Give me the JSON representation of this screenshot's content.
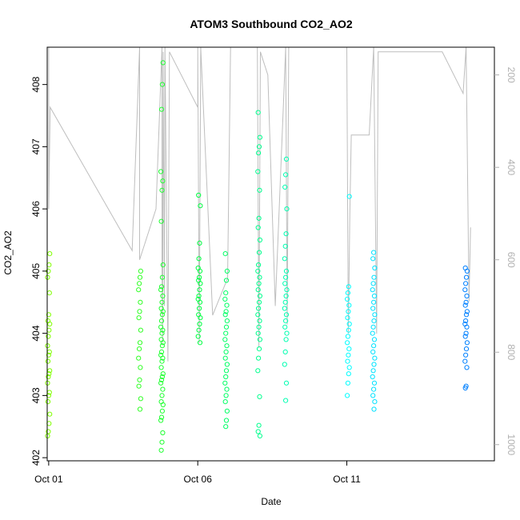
{
  "chart_data": {
    "type": "scatter",
    "title": "ATOM3 Southbound CO2_AO2",
    "xlabel": "Date",
    "ylabel": "CO2_AO2",
    "x_tick_labels": [
      "Oct 01",
      "Oct 06",
      "Oct 11"
    ],
    "x_tick_days": [
      1,
      6,
      11
    ],
    "xlim": [
      0.95,
      15.95
    ],
    "ylim": [
      401.95,
      408.6
    ],
    "y_ticks": [
      402,
      403,
      404,
      405,
      406,
      407,
      408
    ],
    "y2_ticks": [
      200,
      400,
      600,
      800,
      1000
    ],
    "y2_reversed": true,
    "y2lim": [
      1035,
      140
    ],
    "grid": false,
    "colors": {
      "ramp_start": "#80ff00",
      "ramp_mid": "#00ff40",
      "ramp_cyan": "#00ffff",
      "ramp_end": "#0080ff",
      "secondary_line": "#bebebe",
      "right_axis": "#b0b0b0"
    },
    "series": [
      {
        "x_day": 1.0,
        "values": [
          402.35,
          402.42,
          402.55,
          402.7,
          402.9,
          403.0,
          403.05,
          403.2,
          403.3,
          403.35,
          403.4,
          403.55,
          403.65,
          403.7,
          403.8,
          403.95,
          404.05,
          404.15,
          404.2,
          404.3,
          404.65,
          404.9,
          405.0,
          405.1,
          405.28
        ]
      },
      {
        "x_day": 4.05,
        "values": [
          402.78,
          402.95,
          403.15,
          403.25,
          403.45,
          403.6,
          403.75,
          403.85,
          404.05,
          404.25,
          404.35,
          404.5,
          404.7,
          404.8,
          404.9,
          405.0
        ]
      },
      {
        "x_day": 4.8,
        "values": [
          402.12,
          402.25,
          402.4,
          402.6,
          402.65,
          402.75,
          402.85,
          402.9,
          403.0,
          403.1,
          403.2,
          403.25,
          403.3,
          403.35,
          403.45,
          403.55,
          403.6,
          403.65,
          403.7,
          403.8,
          403.85,
          403.9,
          404.0,
          404.05,
          404.1,
          404.2,
          404.3,
          404.35,
          404.4,
          404.5,
          404.6,
          404.7,
          404.75,
          404.9,
          405.1,
          405.8,
          406.3,
          406.45,
          406.6,
          407.6,
          408.0,
          408.35
        ]
      },
      {
        "x_day": 6.05,
        "values": [
          403.85,
          403.95,
          404.05,
          404.15,
          404.25,
          404.3,
          404.4,
          404.5,
          404.55,
          404.6,
          404.7,
          404.8,
          404.85,
          404.9,
          405.0,
          405.05,
          405.2,
          405.45,
          406.05,
          406.22
        ]
      },
      {
        "x_day": 6.95,
        "values": [
          402.5,
          402.6,
          402.75,
          402.9,
          403.0,
          403.1,
          403.2,
          403.3,
          403.4,
          403.5,
          403.6,
          403.7,
          403.8,
          403.9,
          404.0,
          404.1,
          404.2,
          404.3,
          404.35,
          404.45,
          404.55,
          404.65,
          404.85,
          405.0,
          405.28
        ]
      },
      {
        "x_day": 8.05,
        "values": [
          402.35,
          402.42,
          402.52,
          402.98,
          403.4,
          403.6,
          403.75,
          403.9,
          404.0,
          404.1,
          404.2,
          404.3,
          404.4,
          404.5,
          404.6,
          404.7,
          404.8,
          404.9,
          405.0,
          405.1,
          405.3,
          405.5,
          405.7,
          405.85,
          406.3,
          406.6,
          406.9,
          407.0,
          407.15,
          407.55
        ]
      },
      {
        "x_day": 8.95,
        "values": [
          402.92,
          403.2,
          403.5,
          403.7,
          403.9,
          404.0,
          404.1,
          404.2,
          404.3,
          404.4,
          404.5,
          404.6,
          404.7,
          404.8,
          404.9,
          405.0,
          405.2,
          405.4,
          405.6,
          406.0,
          406.35,
          406.55,
          406.8
        ]
      },
      {
        "x_day": 11.05,
        "values": [
          403.0,
          403.2,
          403.35,
          403.45,
          403.55,
          403.65,
          403.75,
          403.85,
          403.95,
          404.05,
          404.15,
          404.25,
          404.35,
          404.45,
          404.55,
          404.65,
          404.75,
          406.2
        ]
      },
      {
        "x_day": 11.9,
        "values": [
          402.78,
          402.9,
          403.0,
          403.1,
          403.2,
          403.3,
          403.4,
          403.5,
          403.6,
          403.7,
          403.8,
          403.9,
          404.0,
          404.1,
          404.2,
          404.3,
          404.4,
          404.5,
          404.6,
          404.7,
          404.8,
          404.9,
          405.05,
          405.2,
          405.3
        ]
      },
      {
        "x_day": 15.0,
        "values": [
          403.12,
          403.15,
          403.45,
          403.55,
          403.65,
          403.75,
          403.85,
          403.95,
          404.0,
          404.1,
          404.15,
          404.2,
          404.3,
          404.35,
          404.45,
          404.5,
          404.6,
          404.7,
          404.8,
          404.9,
          405.0,
          405.05
        ]
      }
    ],
    "secondary_series": {
      "axis": "right",
      "note_values_in_right_axis_units": true,
      "points": [
        [
          1.0,
          140
        ],
        [
          1.0,
          490
        ],
        [
          1.05,
          270
        ],
        [
          3.8,
          580
        ],
        [
          4.05,
          140
        ],
        [
          4.05,
          600
        ],
        [
          4.2,
          570
        ],
        [
          4.6,
          490
        ],
        [
          4.8,
          140
        ],
        [
          4.8,
          620
        ],
        [
          4.82,
          780
        ],
        [
          4.84,
          150
        ],
        [
          4.88,
          700
        ],
        [
          4.9,
          140
        ],
        [
          5.0,
          820
        ],
        [
          5.05,
          150
        ],
        [
          6.0,
          270
        ],
        [
          6.0,
          140
        ],
        [
          6.05,
          780
        ],
        [
          6.1,
          140
        ],
        [
          6.5,
          720
        ],
        [
          7.0,
          640
        ],
        [
          7.1,
          140
        ],
        [
          7.4,
          140
        ],
        [
          8.0,
          140
        ],
        [
          8.05,
          790
        ],
        [
          8.1,
          150
        ],
        [
          8.35,
          200
        ],
        [
          8.6,
          700
        ],
        [
          8.9,
          220
        ],
        [
          8.95,
          140
        ],
        [
          9.0,
          740
        ],
        [
          9.05,
          140
        ],
        [
          11.0,
          140
        ],
        [
          11.05,
          760
        ],
        [
          11.1,
          500
        ],
        [
          11.15,
          330
        ],
        [
          11.75,
          330
        ],
        [
          11.9,
          140
        ],
        [
          12.0,
          760
        ],
        [
          12.05,
          150
        ],
        [
          14.2,
          150
        ],
        [
          14.9,
          240
        ],
        [
          15.0,
          140
        ],
        [
          15.1,
          690
        ],
        [
          15.15,
          530
        ]
      ]
    }
  }
}
